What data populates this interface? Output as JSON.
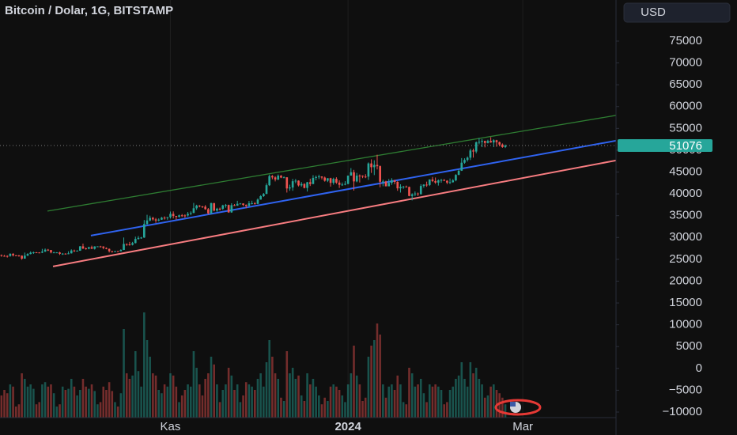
{
  "chart_data": {
    "type": "candlestick",
    "title": "Bitcoin / Dolar, 1G, BITSTAMP",
    "currency": "USD",
    "up_color": "#26a69a",
    "down_color": "#ef5350",
    "xlim": [
      -0.5,
      211
    ],
    "xticks": [
      {
        "value": 58,
        "label": "Kas"
      },
      {
        "value": 119,
        "label": "2024"
      },
      {
        "value": 179,
        "label": "Mar"
      }
    ],
    "xgrid": true,
    "ylim": [
      -11270,
      84420
    ],
    "yticks": [
      75000,
      70000,
      65000,
      60000,
      55000,
      50000,
      45000,
      40000,
      35000,
      30000,
      25000,
      20000,
      15000,
      10000,
      5000,
      0,
      {
        "value": -5000,
        "label": "−5000"
      },
      {
        "value": -10000,
        "label": "−10000"
      }
    ],
    "vlim": [
      0,
      100
    ],
    "lines": [
      {
        "color": "#2e7d32",
        "x": [
          15.8,
          210.9
        ],
        "y": [
          36050,
          57970
        ]
      },
      {
        "color": "#2f63f0",
        "x": [
          30.7,
          210.9
        ],
        "y": [
          30430,
          52170
        ]
      },
      {
        "color": "#f77c80",
        "x": [
          17.7,
          210.9
        ],
        "y": [
          23370,
          47640
        ]
      }
    ],
    "ohlc": [
      [
        25970,
        26100,
        25600,
        25800
      ],
      [
        25800,
        26000,
        25600,
        25780
      ],
      [
        25780,
        25900,
        25400,
        25750
      ],
      [
        25750,
        26400,
        25600,
        26250
      ],
      [
        26250,
        26430,
        25650,
        25900
      ],
      [
        25900,
        26000,
        25800,
        25890
      ],
      [
        25890,
        26000,
        25600,
        25830
      ],
      [
        25830,
        25900,
        24900,
        25160
      ],
      [
        25160,
        26550,
        25130,
        25840
      ],
      [
        25840,
        26400,
        25760,
        26220
      ],
      [
        26220,
        26800,
        26130,
        26530
      ],
      [
        26530,
        26770,
        26240,
        26600
      ],
      [
        26600,
        26670,
        26470,
        26570
      ],
      [
        26570,
        26620,
        26390,
        26530
      ],
      [
        26530,
        27400,
        26420,
        26760
      ],
      [
        26760,
        27480,
        26680,
        27210
      ],
      [
        27210,
        27380,
        26910,
        27130
      ],
      [
        27130,
        27150,
        26370,
        26570
      ],
      [
        26570,
        26740,
        26510,
        26580
      ],
      [
        26580,
        26640,
        26500,
        26580
      ],
      [
        26580,
        26720,
        26000,
        26250
      ],
      [
        26250,
        26440,
        26010,
        26300
      ],
      [
        26300,
        26390,
        26110,
        26220
      ],
      [
        26220,
        26830,
        26160,
        26370
      ],
      [
        26370,
        27290,
        26320,
        27020
      ],
      [
        27020,
        27220,
        26670,
        26900
      ],
      [
        26900,
        27090,
        26890,
        26970
      ],
      [
        26970,
        28050,
        26950,
        27980
      ],
      [
        27980,
        28600,
        27330,
        27500
      ],
      [
        27500,
        27700,
        27210,
        27430
      ],
      [
        27430,
        27840,
        27300,
        27790
      ],
      [
        27790,
        28130,
        27380,
        27410
      ],
      [
        27410,
        28000,
        27240,
        27950
      ],
      [
        27950,
        28000,
        27860,
        27970
      ],
      [
        27970,
        28100,
        27700,
        27940
      ],
      [
        27940,
        27990,
        27300,
        27590
      ],
      [
        27590,
        27720,
        27300,
        27390
      ],
      [
        27390,
        27480,
        26560,
        26870
      ],
      [
        26870,
        26950,
        26550,
        26760
      ],
      [
        26760,
        26950,
        26660,
        26860
      ],
      [
        26860,
        26960,
        26820,
        26850
      ],
      [
        26850,
        27300,
        26800,
        27150
      ],
      [
        27150,
        30000,
        27120,
        28520
      ],
      [
        28520,
        28610,
        28100,
        28410
      ],
      [
        28410,
        28990,
        28140,
        28330
      ],
      [
        28330,
        29000,
        28180,
        28720
      ],
      [
        28720,
        30200,
        28640,
        29670
      ],
      [
        29670,
        30340,
        29500,
        29910
      ],
      [
        29910,
        30130,
        29690,
        29990
      ],
      [
        29990,
        34000,
        29900,
        33080
      ],
      [
        33080,
        35200,
        32950,
        33900
      ],
      [
        33900,
        35000,
        33690,
        34500
      ],
      [
        34500,
        34740,
        33880,
        34150
      ],
      [
        34150,
        34470,
        33360,
        33900
      ],
      [
        33900,
        34380,
        33690,
        34090
      ],
      [
        34090,
        34720,
        34030,
        34540
      ],
      [
        34540,
        34850,
        34100,
        34500
      ],
      [
        34500,
        34700,
        34080,
        34660
      ],
      [
        34660,
        35950,
        34350,
        35420
      ],
      [
        35420,
        35980,
        34370,
        34940
      ],
      [
        34940,
        34950,
        34100,
        34730
      ],
      [
        34730,
        35250,
        34580,
        35080
      ],
      [
        35080,
        35370,
        34700,
        35050
      ],
      [
        35050,
        35300,
        34540,
        35040
      ],
      [
        35040,
        35850,
        34780,
        35420
      ],
      [
        35420,
        35990,
        35100,
        35630
      ],
      [
        35630,
        37920,
        35560,
        36700
      ],
      [
        36700,
        37500,
        36340,
        37310
      ],
      [
        37310,
        37420,
        36920,
        37130
      ],
      [
        37130,
        37220,
        36750,
        37060
      ],
      [
        37060,
        37420,
        36360,
        36480
      ],
      [
        36480,
        36750,
        35300,
        35540
      ],
      [
        35540,
        37980,
        35360,
        37870
      ],
      [
        37870,
        37930,
        35990,
        36160
      ],
      [
        36160,
        36800,
        35880,
        36600
      ],
      [
        36600,
        36850,
        36200,
        36580
      ],
      [
        36580,
        37500,
        36310,
        37360
      ],
      [
        37360,
        37680,
        36830,
        37450
      ],
      [
        37450,
        37530,
        35650,
        35750
      ],
      [
        35750,
        37850,
        35670,
        37410
      ],
      [
        37410,
        37640,
        37230,
        37290
      ],
      [
        37290,
        38410,
        37260,
        37720
      ],
      [
        37720,
        37900,
        37600,
        37790
      ],
      [
        37790,
        37840,
        37170,
        37480
      ],
      [
        37480,
        37590,
        36720,
        37250
      ],
      [
        37250,
        38380,
        37110,
        37830
      ],
      [
        37830,
        38430,
        37570,
        37850
      ],
      [
        37850,
        38140,
        37530,
        37710
      ],
      [
        37710,
        38950,
        37630,
        38690
      ],
      [
        38690,
        39690,
        38660,
        39470
      ],
      [
        39470,
        40200,
        39300,
        39980
      ],
      [
        39980,
        42400,
        39960,
        41980
      ],
      [
        41980,
        44400,
        41800,
        44080
      ],
      [
        44080,
        44300,
        43340,
        43770
      ],
      [
        43770,
        44050,
        42850,
        43290
      ],
      [
        43290,
        44460,
        43140,
        44170
      ],
      [
        44170,
        44300,
        43600,
        43730
      ],
      [
        43730,
        44000,
        43600,
        43790
      ],
      [
        43790,
        43800,
        40300,
        41240
      ],
      [
        41240,
        42100,
        40700,
        41450
      ],
      [
        41450,
        43430,
        40700,
        42890
      ],
      [
        42890,
        43400,
        42440,
        43020
      ],
      [
        43020,
        43090,
        41700,
        41940
      ],
      [
        41940,
        42700,
        41640,
        42260
      ],
      [
        42260,
        42430,
        41250,
        41360
      ],
      [
        41360,
        42750,
        40530,
        42660
      ],
      [
        42660,
        43480,
        41800,
        42270
      ],
      [
        42270,
        44280,
        42200,
        43650
      ],
      [
        43650,
        44200,
        43100,
        43860
      ],
      [
        43860,
        44400,
        43400,
        43990
      ],
      [
        43990,
        43990,
        43310,
        43730
      ],
      [
        43730,
        43950,
        42800,
        43010
      ],
      [
        43010,
        43600,
        42700,
        43580
      ],
      [
        43580,
        43680,
        41660,
        42520
      ],
      [
        42520,
        43700,
        42100,
        43440
      ],
      [
        43440,
        43800,
        42300,
        42580
      ],
      [
        42580,
        43100,
        41350,
        42070
      ],
      [
        42070,
        42600,
        41830,
        42140
      ],
      [
        42140,
        42900,
        41970,
        42280
      ],
      [
        42280,
        44200,
        42180,
        44180
      ],
      [
        44180,
        45900,
        44180,
        44950
      ],
      [
        44950,
        45500,
        40750,
        42850
      ],
      [
        42850,
        44800,
        42650,
        44180
      ],
      [
        44180,
        44450,
        42600,
        44160
      ],
      [
        44160,
        44230,
        43600,
        43970
      ],
      [
        43970,
        44500,
        43600,
        43940
      ],
      [
        43940,
        47200,
        43200,
        46970
      ],
      [
        46970,
        47900,
        44800,
        46110
      ],
      [
        46110,
        47700,
        44300,
        46630
      ],
      [
        46630,
        48970,
        45600,
        46340
      ],
      [
        46340,
        46500,
        41500,
        42780
      ],
      [
        42780,
        43250,
        41740,
        42840
      ],
      [
        42840,
        43000,
        41720,
        41730
      ],
      [
        41730,
        43400,
        41730,
        42510
      ],
      [
        42510,
        43600,
        42050,
        43150
      ],
      [
        43150,
        43200,
        42200,
        42740
      ],
      [
        42740,
        42900,
        40700,
        41260
      ],
      [
        41260,
        42200,
        40300,
        41620
      ],
      [
        41620,
        41830,
        41150,
        41660
      ],
      [
        41660,
        41890,
        41500,
        41580
      ],
      [
        41580,
        41660,
        39450,
        39510
      ],
      [
        39510,
        40130,
        38500,
        39890
      ],
      [
        39890,
        40550,
        39480,
        40080
      ],
      [
        40080,
        40300,
        39500,
        39940
      ],
      [
        39940,
        42200,
        39820,
        41810
      ],
      [
        41810,
        42200,
        41400,
        42120
      ],
      [
        42120,
        42800,
        41620,
        42030
      ],
      [
        42030,
        43300,
        41800,
        43300
      ],
      [
        43300,
        43880,
        42700,
        42940
      ],
      [
        42940,
        43740,
        42300,
        42580
      ],
      [
        42580,
        43300,
        41900,
        43080
      ],
      [
        43080,
        43420,
        42550,
        43190
      ],
      [
        43190,
        43380,
        42900,
        43000
      ],
      [
        43000,
        43120,
        42230,
        42580
      ],
      [
        42580,
        43520,
        42280,
        42660
      ],
      [
        42660,
        43400,
        42580,
        43090
      ],
      [
        43090,
        44500,
        42880,
        44340
      ],
      [
        44340,
        45600,
        44300,
        45300
      ],
      [
        45300,
        48200,
        45250,
        47140
      ],
      [
        47140,
        48150,
        46900,
        47770
      ],
      [
        47770,
        48570,
        47400,
        48290
      ],
      [
        48290,
        50350,
        47750,
        49940
      ],
      [
        49940,
        50370,
        48300,
        49700
      ],
      [
        49700,
        52000,
        49300,
        51800
      ],
      [
        51800,
        52800,
        51350,
        51920
      ],
      [
        51920,
        52570,
        50700,
        52130
      ],
      [
        52130,
        52180,
        50650,
        51660
      ],
      [
        51660,
        52400,
        51550,
        52120
      ],
      [
        52120,
        52980,
        51700,
        51780
      ],
      [
        51780,
        52500,
        50700,
        52280
      ],
      [
        52280,
        52380,
        50800,
        51850
      ],
      [
        51850,
        51980,
        50900,
        51300
      ],
      [
        51300,
        51550,
        50550,
        50730
      ],
      [
        50730,
        51300,
        50500,
        51076
      ]
    ],
    "volume": [
      20,
      25,
      22,
      30,
      28,
      10,
      12,
      40,
      35,
      28,
      30,
      26,
      12,
      14,
      30,
      32,
      28,
      30,
      22,
      10,
      12,
      28,
      25,
      26,
      35,
      28,
      20,
      25,
      35,
      28,
      26,
      30,
      24,
      12,
      14,
      28,
      25,
      32,
      24,
      14,
      10,
      22,
      80,
      40,
      35,
      38,
      60,
      42,
      28,
      95,
      70,
      55,
      40,
      38,
      25,
      22,
      30,
      28,
      40,
      38,
      28,
      14,
      20,
      25,
      30,
      28,
      60,
      45,
      30,
      20,
      35,
      40,
      55,
      48,
      30,
      14,
      25,
      30,
      45,
      38,
      25,
      30,
      14,
      20,
      32,
      30,
      28,
      25,
      35,
      40,
      28,
      50,
      70,
      55,
      40,
      35,
      18,
      15,
      60,
      40,
      45,
      35,
      38,
      20,
      15,
      40,
      30,
      35,
      28,
      20,
      12,
      18,
      15,
      28,
      30,
      28,
      25,
      20,
      14,
      30,
      40,
      65,
      38,
      30,
      15,
      18,
      55,
      65,
      70,
      85,
      75,
      30,
      18,
      28,
      30,
      25,
      38,
      30,
      14,
      12,
      45,
      40,
      28,
      30,
      35,
      22,
      14,
      30,
      28,
      30,
      28,
      25,
      12,
      14,
      25,
      28,
      35,
      38,
      50,
      35,
      28,
      50,
      40,
      45,
      35,
      30,
      18,
      20,
      28,
      30,
      25,
      22,
      18,
      12
    ]
  }
}
